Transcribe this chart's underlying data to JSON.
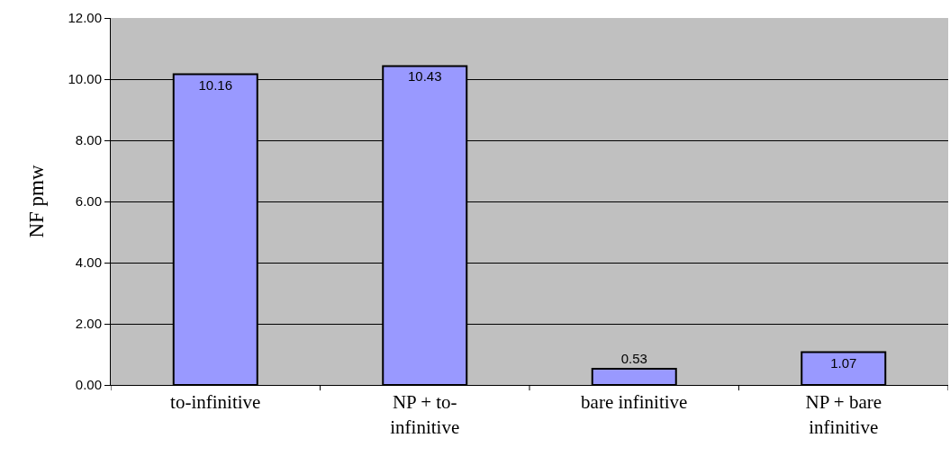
{
  "chart_data": {
    "type": "bar",
    "ylabel": "NF pmw",
    "categories": [
      "to-infinitive",
      "NP + to-infinitive",
      "bare infinitive",
      "NP + bare infinitive"
    ],
    "values": [
      10.16,
      10.43,
      0.53,
      1.07
    ],
    "color": "#9999ff",
    "data_labels": true,
    "ylim": [
      0,
      12
    ],
    "yticks": [
      {
        "value": 0,
        "label": "0.00"
      },
      {
        "value": 2,
        "label": "2.00"
      },
      {
        "value": 4,
        "label": "4.00"
      },
      {
        "value": 6,
        "label": "6.00"
      },
      {
        "value": 8,
        "label": "8.00"
      },
      {
        "value": 10,
        "label": "10.00"
      },
      {
        "value": 12,
        "label": "12.00"
      }
    ],
    "grid": "y",
    "legend": false
  }
}
